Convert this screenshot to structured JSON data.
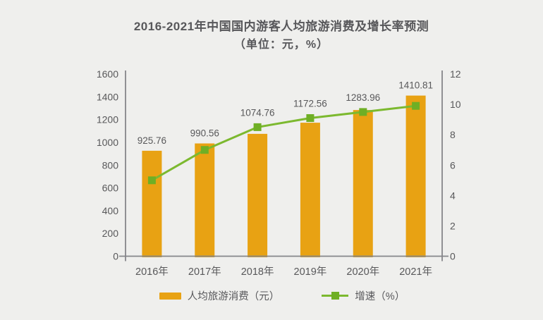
{
  "chart_data": {
    "type": "bar+line",
    "title": "2016-2021年中国国内游客人均旅游消费及增长率预测",
    "subtitle": "（单位：元，%）",
    "categories": [
      "2016年",
      "2017年",
      "2018年",
      "2019年",
      "2020年",
      "2021年"
    ],
    "series": [
      {
        "name": "人均旅游消费（元）",
        "type": "bar",
        "y_axis": "left",
        "color": "#E8A213",
        "values": [
          925.76,
          990.56,
          1074.76,
          1172.56,
          1283.96,
          1410.81
        ],
        "labels": [
          "925.76",
          "990.56",
          "1074.76",
          "1172.56",
          "1283.96",
          "1410.81"
        ]
      },
      {
        "name": "增速（%）",
        "type": "line",
        "y_axis": "right",
        "color": "#7CB92F",
        "marker": "square",
        "marker_color": "#6FAF25",
        "values": [
          5.0,
          7.0,
          8.5,
          9.1,
          9.5,
          9.9
        ]
      }
    ],
    "left_axis": {
      "min": 0,
      "max": 1600,
      "step": 200
    },
    "right_axis": {
      "min": 0,
      "max": 12,
      "step": 2
    },
    "grid": false,
    "legend_position": "bottom",
    "background_color": "#EFEFED",
    "text_color": "#58585A",
    "axis_color": "#85868A"
  }
}
